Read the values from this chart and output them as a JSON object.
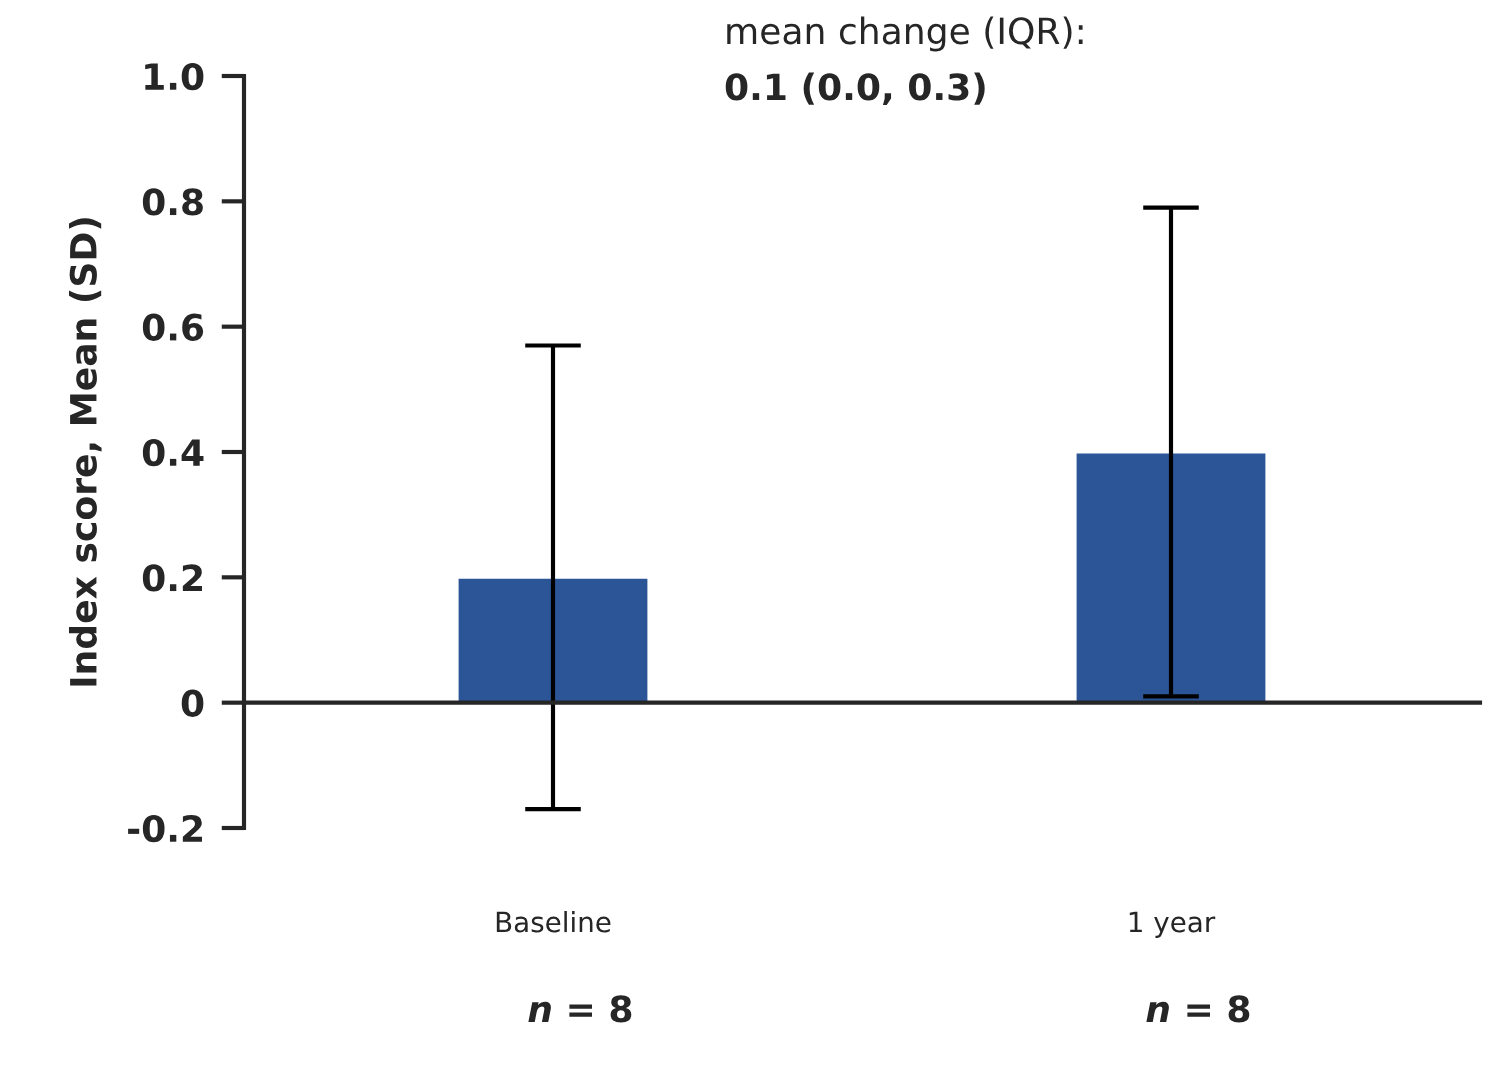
{
  "chart_data": {
    "type": "bar",
    "ylabel": "Index score, Mean (SD)",
    "categories": [
      "Baseline",
      "1 year"
    ],
    "values": [
      0.2,
      0.4
    ],
    "errors": [
      0.37,
      0.39
    ],
    "color": "#2b5597",
    "ylim": [
      -0.2,
      1.0
    ],
    "yticks": [
      {
        "value": -0.2,
        "label": "-0.2"
      },
      {
        "value": 0,
        "label": "0"
      },
      0.2,
      0.4,
      0.6,
      0.8,
      {
        "value": 1.0,
        "label": "1.0"
      }
    ],
    "annotations": [
      "mean change (IQR):",
      "0.1 (0.0, 0.3)",
      "n = 8",
      "n = 8"
    ]
  }
}
